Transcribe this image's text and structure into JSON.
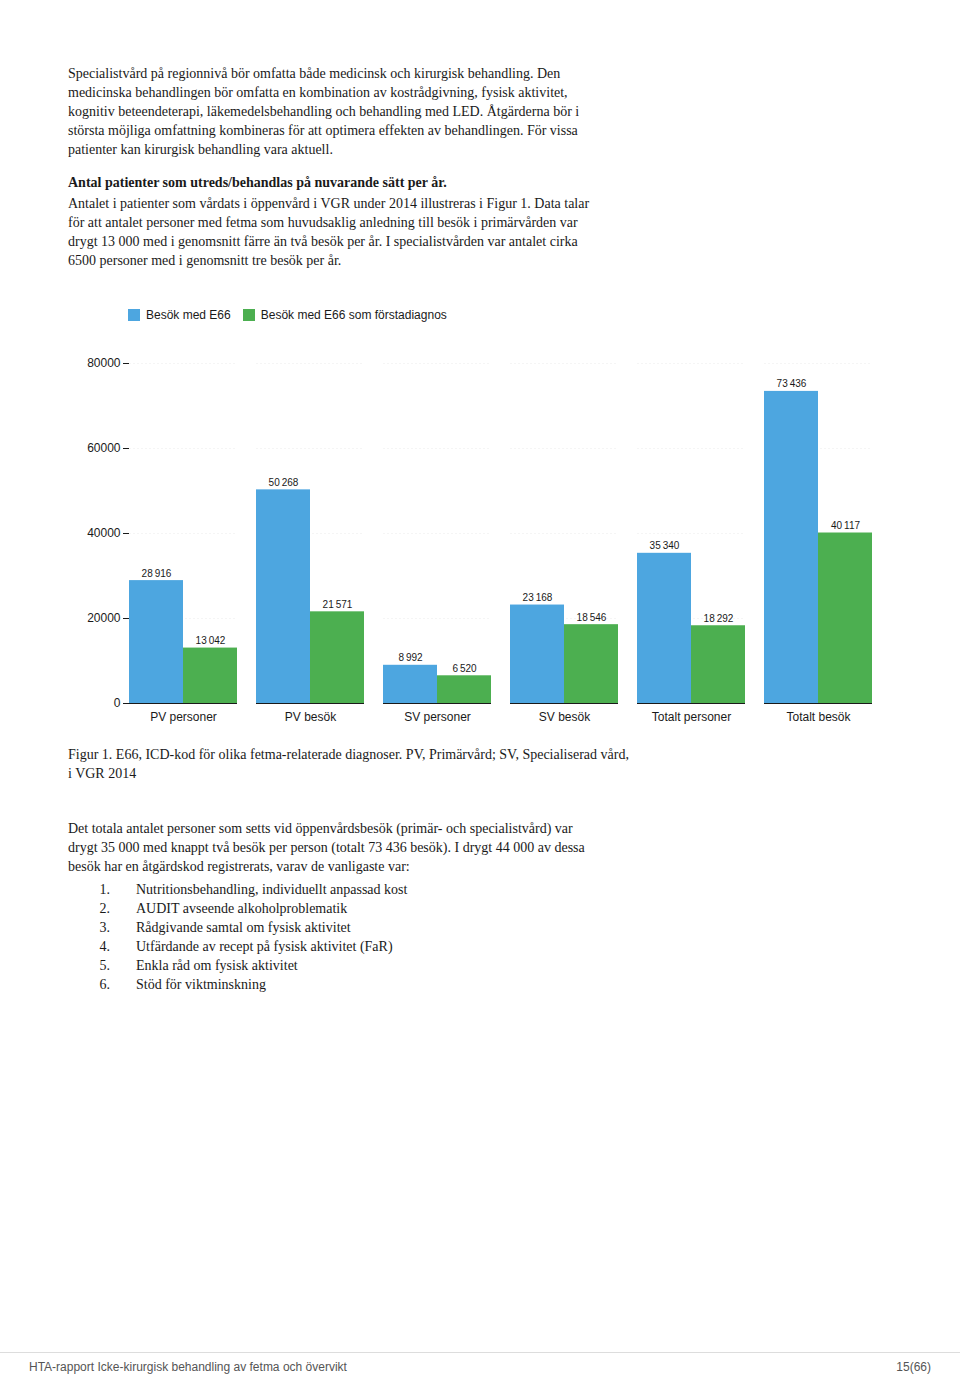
{
  "chart_data": {
    "type": "bar",
    "categories": [
      "PV personer",
      "PV besök",
      "SV personer",
      "SV besök",
      "Totalt personer",
      "Totalt besök"
    ],
    "series": [
      {
        "name": "Besök med E66",
        "color": "#4da6e0",
        "values": [
          28916,
          50268,
          8992,
          23168,
          35340,
          73436
        ],
        "value_labels": [
          "28 916",
          "50 268",
          "8 992",
          "23 168",
          "35 340",
          "73 436"
        ]
      },
      {
        "name": "Besök med E66 som förstadiagnos",
        "color": "#4caf50",
        "values": [
          13042,
          21571,
          6520,
          18546,
          18292,
          40117
        ],
        "value_labels": [
          "13 042",
          "21 571",
          "6 520",
          "18 546",
          "18 292",
          "40 117"
        ]
      }
    ],
    "ylim": [
      0,
      80000
    ],
    "yticks": [
      0,
      20000,
      40000,
      60000,
      80000
    ],
    "grid": true,
    "legend": "upper left",
    "data_labels": true
  },
  "page_text": {
    "body_text_1": [
      "Specialistvård på regionnivå bör omfatta både medicinsk och kirurgisk behandling. Den",
      "medicinska behandlingen bör omfatta en kombination av kostrådgivning, fysisk aktivitet,",
      "kognitiv beteendeterapi, läkemedelsbehandling och behandling med LED. Åtgärderna bör i",
      "största möjliga omfattning kombineras för att optimera effekten av behandlingen. För vissa",
      "patienter kan kirurgisk behandling vara aktuell."
    ],
    "heading": "Antal patienter som utreds/behandlas på nuvarande sätt per år.",
    "body_text_2": [
      "Antalet i patienter som vårdats i öppenvård i VGR under 2014 illustreras i Figur 1. Data talar",
      "för att antalet personer med fetma som huvudsaklig anledning till besök i primärvården var",
      "drygt 13 000 med i genomsnitt färre än två besök per år. I specialistvården var antalet cirka",
      "6500 personer med i genomsnitt tre besök per år."
    ],
    "caption": [
      "Figur 1. E66, ICD-kod för olika fetma-relaterade diagnoser. PV, Primärvård; SV, Specialiserad vård,",
      "i VGR 2014"
    ],
    "body_text_3": [
      "Det totala antalet personer som setts vid öppenvårdsbesök (primär- och specialistvård) var",
      "drygt 35 000 med knappt två besök per person (totalt 73 436 besök). I drygt 44 000 av dessa",
      "besök har en åtgärdskod registrerats, varav de vanligaste var:"
    ],
    "list": [
      {
        "label": "1.",
        "text": "Nutritionsbehandling, individuellt anpassad kost"
      },
      {
        "label": "2.",
        "text": "AUDIT avseende alkoholproblematik"
      },
      {
        "label": "3.",
        "text": "Rådgivande samtal om fysisk aktivitet"
      },
      {
        "label": "4.",
        "text": "Utfärdande av recept på fysisk aktivitet (FaR)"
      },
      {
        "label": "5.",
        "text": "Enkla råd om fysisk aktivitet"
      },
      {
        "label": "6.",
        "text": "Stöd för viktminskning"
      }
    ],
    "footer_left": "HTA-rapport Icke-kirurgisk behandling av fetma och övervikt",
    "footer_right": "15(66)"
  }
}
